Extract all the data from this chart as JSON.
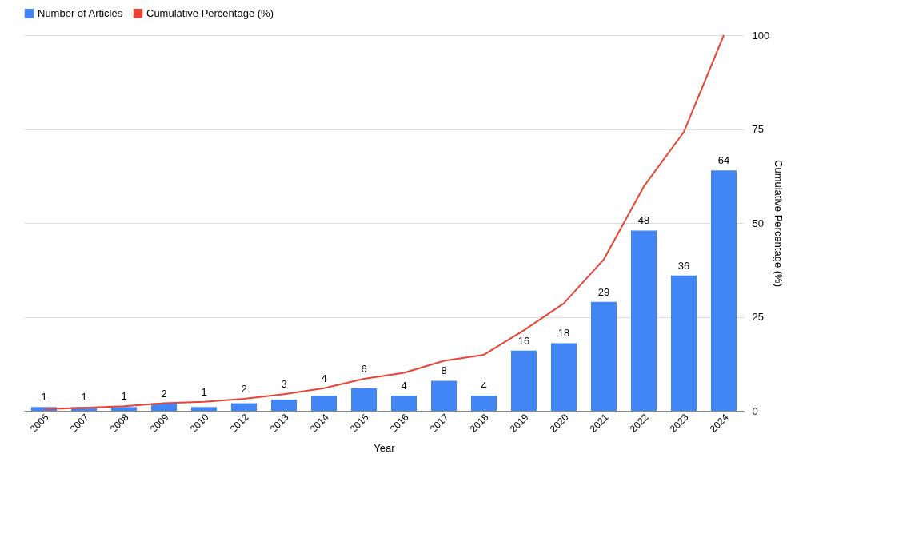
{
  "chart_data": {
    "type": "bar",
    "xlabel": "Year",
    "y2label": "Cumulative Percentage (%)",
    "categories": [
      "2005",
      "2007",
      "2008",
      "2009",
      "2010",
      "2012",
      "2013",
      "2014",
      "2015",
      "2016",
      "2017",
      "2018",
      "2019",
      "2020",
      "2021",
      "2022",
      "2023",
      "2024"
    ],
    "series": [
      {
        "name": "Number of Articles",
        "color": "#4285f4",
        "values": [
          1,
          1,
          1,
          2,
          1,
          2,
          3,
          4,
          6,
          4,
          8,
          4,
          16,
          18,
          29,
          48,
          36,
          64
        ],
        "value_labels": [
          "1",
          "1",
          "1",
          "2",
          "1",
          "2",
          "3",
          "4",
          "6",
          "4",
          "8",
          "4",
          "16",
          "18",
          "29",
          "48",
          "36",
          "64"
        ]
      },
      {
        "name": "Cumulative Percentage (%)",
        "type": "line",
        "axis": "y2",
        "color": "#ea4335",
        "values": [
          0.4,
          0.8,
          1.2,
          2.0,
          2.4,
          3.2,
          4.4,
          6.0,
          8.5,
          10.1,
          13.3,
          14.9,
          21.4,
          28.6,
          40.3,
          59.7,
          74.2,
          100
        ]
      }
    ],
    "y2lim": [
      0,
      100
    ],
    "y2ticks": [
      0,
      25,
      50,
      75,
      100
    ],
    "grid": "y",
    "legend": "top",
    "marker": "none",
    "line_style": "solid"
  }
}
